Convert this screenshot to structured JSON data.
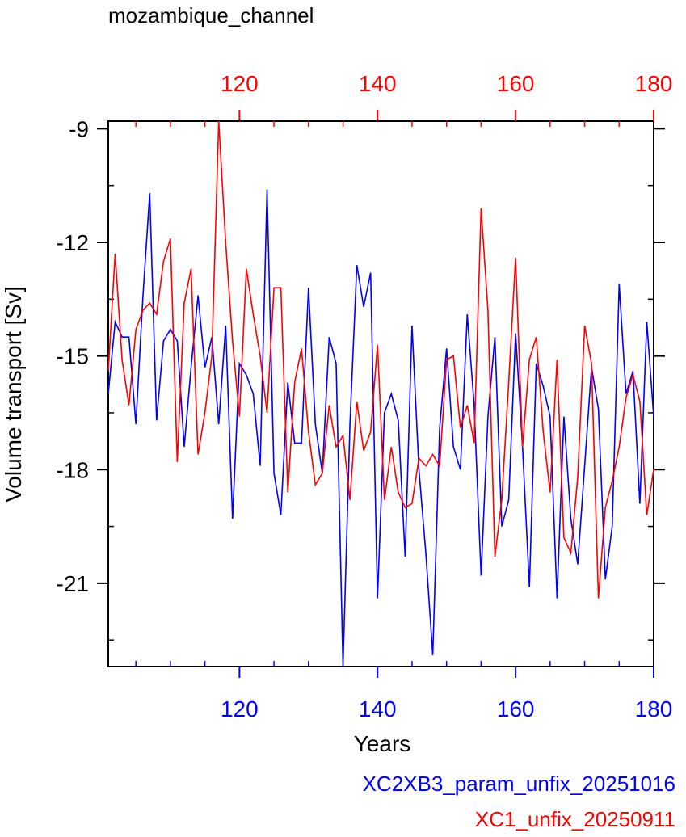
{
  "chart_data": {
    "type": "line",
    "title": "mozambique_channel",
    "xlabel": "Years",
    "ylabel": "Volume transport [Sv]",
    "xlim": [
      101,
      180
    ],
    "ylim": [
      -23.2,
      -8.8
    ],
    "x_ticks": [
      120,
      140,
      160,
      180
    ],
    "y_ticks": [
      -9,
      -12,
      -15,
      -18,
      -21
    ],
    "top_axis_color": "#ff0000",
    "bottom_axis_color": "#0000ff",
    "grid": false,
    "legend_position": "bottom-right",
    "series": [
      {
        "name": "XC2XB3_param_unfix_20251016",
        "color": "#0000ff",
        "axis": "bottom",
        "x_start": 101,
        "values": [
          -16.0,
          -14.1,
          -14.5,
          -14.5,
          -16.8,
          -13.5,
          -10.7,
          -16.7,
          -14.6,
          -14.3,
          -14.6,
          -17.4,
          -15.3,
          -13.4,
          -15.3,
          -14.5,
          -16.8,
          -14.2,
          -19.3,
          -15.2,
          -15.5,
          -16.0,
          -17.9,
          -10.6,
          -18.1,
          -19.2,
          -15.7,
          -17.3,
          -17.3,
          -13.2,
          -16.8,
          -18.1,
          -14.5,
          -15.2,
          -23.2,
          -16.8,
          -12.6,
          -13.7,
          -12.8,
          -21.4,
          -16.5,
          -16.0,
          -16.7,
          -20.3,
          -14.2,
          -18.0,
          -20.2,
          -22.9,
          -16.9,
          -14.8,
          -17.4,
          -18.0,
          -13.9,
          -16.3,
          -20.8,
          -16.6,
          -14.5,
          -19.5,
          -18.8,
          -14.4,
          -17.4,
          -21.1,
          -15.2,
          -15.8,
          -16.6,
          -21.4,
          -16.6,
          -19.3,
          -20.5,
          -17.9,
          -15.3,
          -16.4,
          -20.9,
          -19.5,
          -13.1,
          -16.0,
          -15.4,
          -18.9,
          -14.1,
          -16.6
        ]
      },
      {
        "name": "XC1_unfix_20250911",
        "color": "#ff0000",
        "axis": "top",
        "x_start": 101,
        "values": [
          -15.4,
          -12.3,
          -15.1,
          -16.3,
          -14.3,
          -13.8,
          -13.6,
          -13.9,
          -12.5,
          -11.9,
          -17.8,
          -13.6,
          -12.7,
          -17.6,
          -16.5,
          -15.0,
          -8.8,
          -12.0,
          -14.6,
          -16.6,
          -12.7,
          -13.9,
          -15.0,
          -16.5,
          -13.2,
          -13.2,
          -18.6,
          -15.7,
          -14.8,
          -17.0,
          -18.4,
          -18.1,
          -16.3,
          -17.4,
          -17.1,
          -18.8,
          -16.2,
          -17.5,
          -17.0,
          -14.7,
          -18.8,
          -17.4,
          -18.6,
          -19.0,
          -18.9,
          -17.7,
          -17.9,
          -17.6,
          -17.9,
          -15.1,
          -15.0,
          -16.9,
          -16.3,
          -17.3,
          -11.1,
          -13.8,
          -20.3,
          -18.8,
          -15.7,
          -12.4,
          -17.4,
          -15.1,
          -14.5,
          -17.0,
          -18.6,
          -15.1,
          -19.8,
          -20.2,
          -18.2,
          -14.2,
          -15.2,
          -21.4,
          -19.0,
          -18.3,
          -17.4,
          -16.1,
          -15.5,
          -16.2,
          -19.2,
          -18.0
        ]
      }
    ]
  }
}
